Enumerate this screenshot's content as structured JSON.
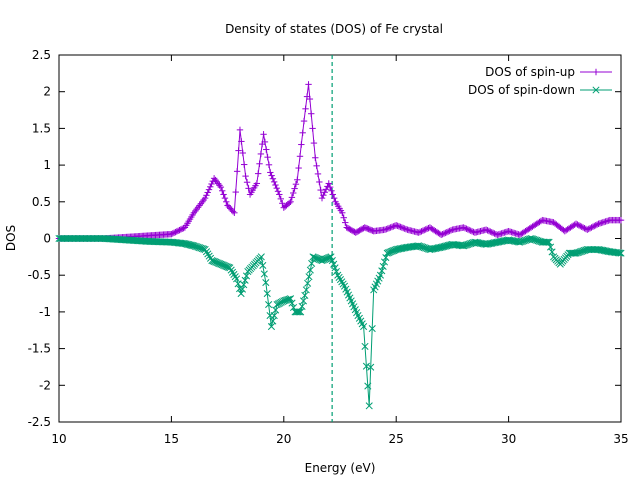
{
  "chart_data": {
    "type": "line",
    "title": "Density of states (DOS) of Fe crystal",
    "xlabel": "Energy (eV)",
    "ylabel": "DOS",
    "xlim": [
      10,
      35
    ],
    "ylim": [
      -2.5,
      2.5
    ],
    "xticks": [
      "10",
      "15",
      "20",
      "25",
      "30",
      "35"
    ],
    "yticks": [
      "2.5",
      "2",
      "1.5",
      "1",
      "0.5",
      "0",
      "-0.5",
      "-1",
      "-1.5",
      "-2",
      "-2.5"
    ],
    "grid": false,
    "legend": "top-right",
    "vline": {
      "x": 22.15,
      "style": "dashed",
      "color": "#009e73"
    },
    "series": [
      {
        "name": "DOS of spin-up",
        "color": "#9400d3",
        "marker": "plus",
        "points": [
          [
            10.0,
            0.0
          ],
          [
            12.0,
            0.0
          ],
          [
            13.0,
            0.02
          ],
          [
            14.0,
            0.04
          ],
          [
            15.0,
            0.06
          ],
          [
            15.6,
            0.15
          ],
          [
            16.0,
            0.35
          ],
          [
            16.5,
            0.55
          ],
          [
            16.9,
            0.82
          ],
          [
            17.2,
            0.7
          ],
          [
            17.5,
            0.45
          ],
          [
            17.8,
            0.35
          ],
          [
            18.05,
            1.48
          ],
          [
            18.3,
            0.85
          ],
          [
            18.5,
            0.6
          ],
          [
            18.8,
            0.75
          ],
          [
            19.1,
            1.42
          ],
          [
            19.4,
            0.9
          ],
          [
            19.8,
            0.6
          ],
          [
            20.0,
            0.42
          ],
          [
            20.3,
            0.5
          ],
          [
            20.6,
            0.8
          ],
          [
            20.9,
            1.6
          ],
          [
            21.1,
            2.1
          ],
          [
            21.4,
            1.1
          ],
          [
            21.7,
            0.55
          ],
          [
            22.0,
            0.75
          ],
          [
            22.3,
            0.5
          ],
          [
            22.6,
            0.35
          ],
          [
            22.8,
            0.15
          ],
          [
            23.2,
            0.08
          ],
          [
            23.6,
            0.15
          ],
          [
            24.0,
            0.1
          ],
          [
            24.5,
            0.12
          ],
          [
            25.0,
            0.18
          ],
          [
            25.5,
            0.12
          ],
          [
            26.0,
            0.08
          ],
          [
            26.5,
            0.15
          ],
          [
            27.0,
            0.05
          ],
          [
            27.5,
            0.12
          ],
          [
            28.0,
            0.15
          ],
          [
            28.5,
            0.08
          ],
          [
            29.0,
            0.12
          ],
          [
            29.5,
            0.05
          ],
          [
            30.0,
            0.1
          ],
          [
            30.5,
            0.05
          ],
          [
            31.0,
            0.15
          ],
          [
            31.5,
            0.25
          ],
          [
            32.0,
            0.22
          ],
          [
            32.5,
            0.1
          ],
          [
            33.0,
            0.2
          ],
          [
            33.5,
            0.12
          ],
          [
            34.0,
            0.2
          ],
          [
            34.5,
            0.25
          ],
          [
            35.0,
            0.25
          ]
        ]
      },
      {
        "name": "DOS of spin-down",
        "color": "#009e73",
        "marker": "cross",
        "points": [
          [
            10.0,
            0.0
          ],
          [
            12.0,
            0.0
          ],
          [
            13.0,
            -0.02
          ],
          [
            14.0,
            -0.04
          ],
          [
            15.0,
            -0.05
          ],
          [
            15.6,
            -0.07
          ],
          [
            16.0,
            -0.1
          ],
          [
            16.5,
            -0.15
          ],
          [
            16.8,
            -0.3
          ],
          [
            17.2,
            -0.35
          ],
          [
            17.6,
            -0.4
          ],
          [
            17.9,
            -0.55
          ],
          [
            18.1,
            -0.75
          ],
          [
            18.4,
            -0.45
          ],
          [
            18.7,
            -0.35
          ],
          [
            19.0,
            -0.25
          ],
          [
            19.2,
            -0.6
          ],
          [
            19.45,
            -1.2
          ],
          [
            19.7,
            -0.9
          ],
          [
            20.0,
            -0.85
          ],
          [
            20.3,
            -0.82
          ],
          [
            20.5,
            -1.0
          ],
          [
            20.75,
            -1.0
          ],
          [
            21.0,
            -0.7
          ],
          [
            21.3,
            -0.25
          ],
          [
            21.7,
            -0.3
          ],
          [
            22.1,
            -0.25
          ],
          [
            22.4,
            -0.5
          ],
          [
            22.7,
            -0.65
          ],
          [
            23.0,
            -0.85
          ],
          [
            23.3,
            -1.05
          ],
          [
            23.55,
            -1.2
          ],
          [
            23.8,
            -2.28
          ],
          [
            24.0,
            -0.7
          ],
          [
            24.3,
            -0.5
          ],
          [
            24.6,
            -0.2
          ],
          [
            25.0,
            -0.15
          ],
          [
            25.5,
            -0.12
          ],
          [
            26.0,
            -0.1
          ],
          [
            26.5,
            -0.15
          ],
          [
            27.0,
            -0.12
          ],
          [
            27.5,
            -0.08
          ],
          [
            28.0,
            -0.1
          ],
          [
            28.5,
            -0.05
          ],
          [
            29.0,
            -0.08
          ],
          [
            29.5,
            -0.05
          ],
          [
            30.0,
            -0.02
          ],
          [
            30.5,
            -0.05
          ],
          [
            31.0,
            0.0
          ],
          [
            31.5,
            -0.05
          ],
          [
            31.8,
            -0.05
          ],
          [
            32.0,
            -0.25
          ],
          [
            32.3,
            -0.35
          ],
          [
            32.7,
            -0.2
          ],
          [
            33.0,
            -0.2
          ],
          [
            33.5,
            -0.15
          ],
          [
            34.0,
            -0.15
          ],
          [
            34.5,
            -0.18
          ],
          [
            35.0,
            -0.2
          ]
        ]
      }
    ]
  }
}
